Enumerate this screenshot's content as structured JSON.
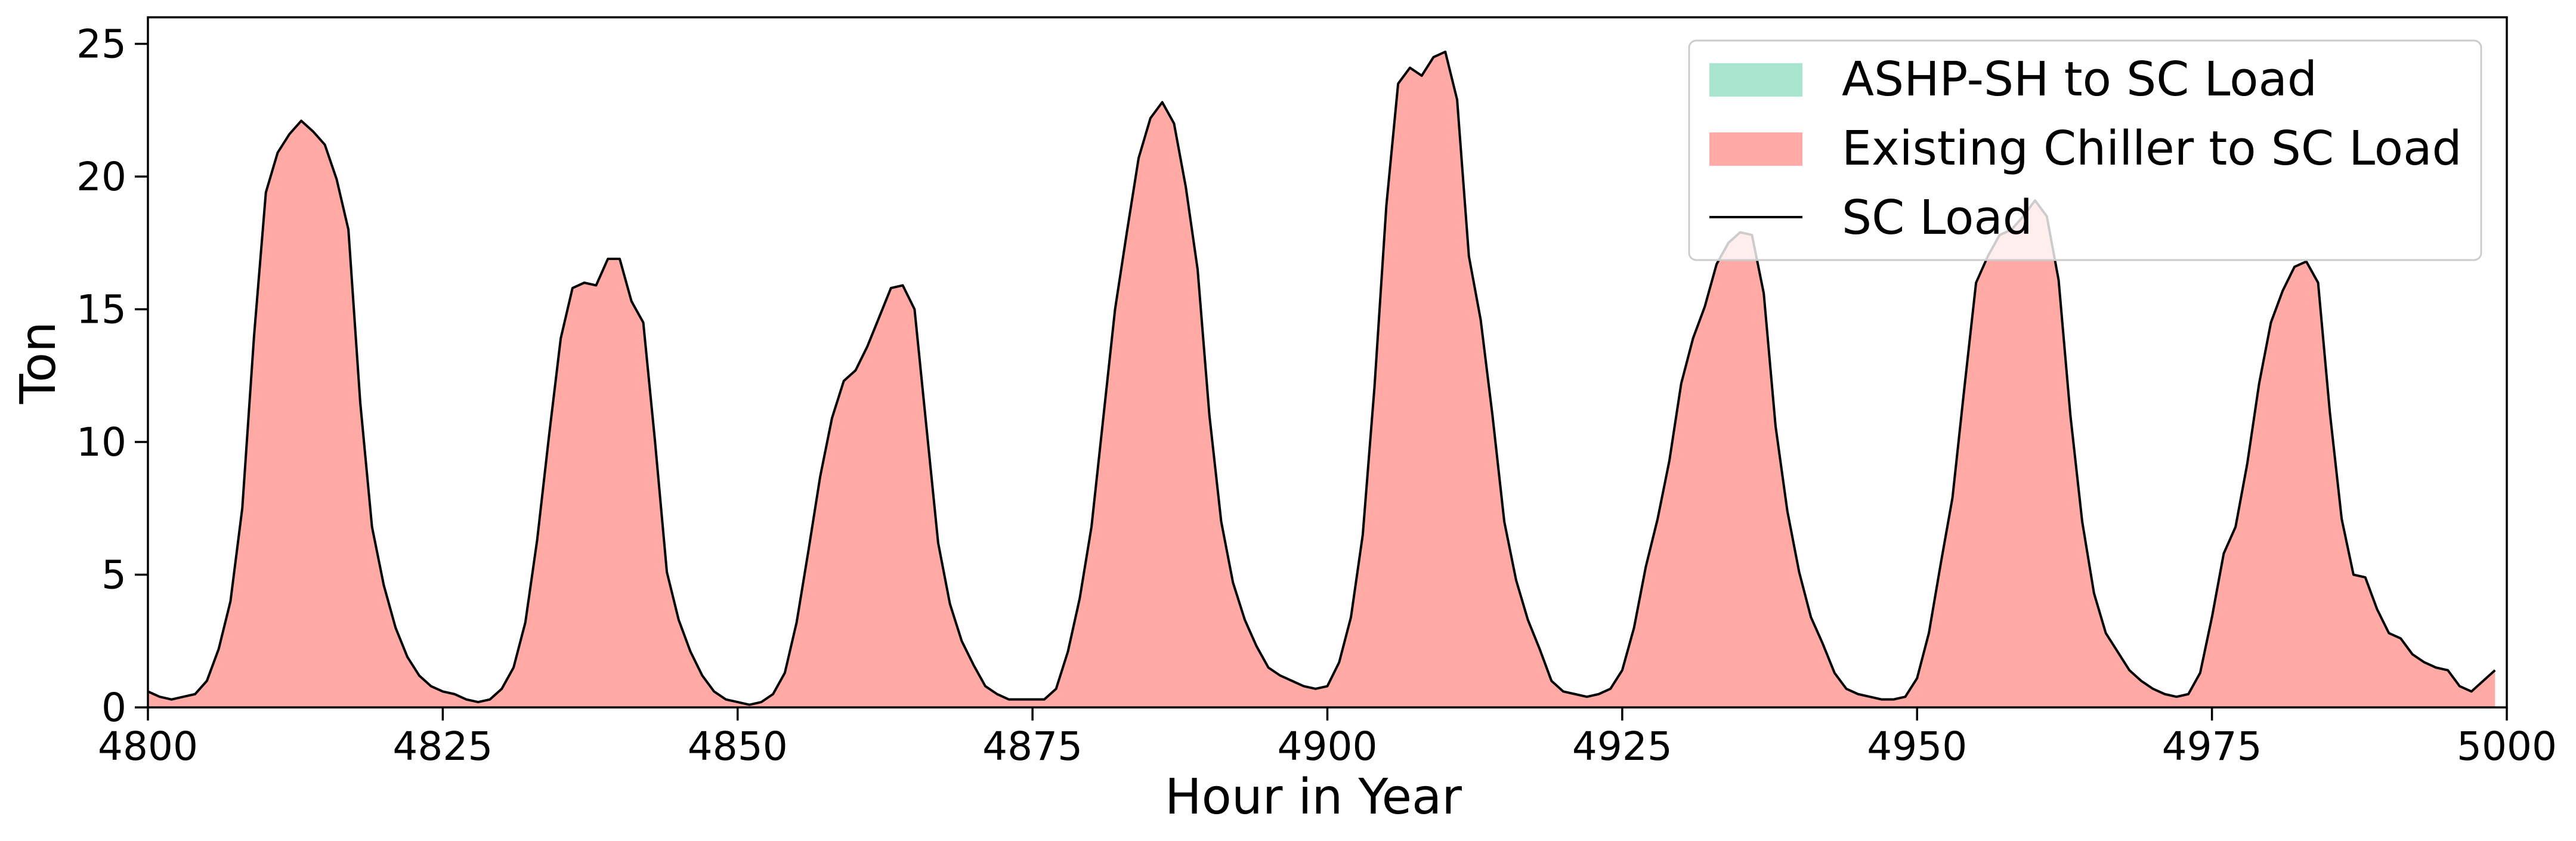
{
  "chart_data": {
    "type": "area",
    "title": "",
    "xlabel": "Hour in Year",
    "ylabel": "Ton",
    "xlim": [
      4800,
      5000
    ],
    "ylim": [
      0,
      26
    ],
    "xticks": [
      4800,
      4825,
      4850,
      4875,
      4900,
      4925,
      4950,
      4975,
      5000
    ],
    "yticks": [
      0,
      5,
      10,
      15,
      20,
      25
    ],
    "grid": false,
    "legend_position": "top-right",
    "colors": {
      "ashp": "#a8e6cf",
      "chiller": "#ffaaa5",
      "load": "#000000"
    },
    "series": [
      {
        "name": "ASHP-SH to SC Load",
        "kind": "stacked-area",
        "color": "#a8e6cf"
      },
      {
        "name": "Existing Chiller to SC Load",
        "kind": "stacked-area",
        "color": "#ffaaa5"
      },
      {
        "name": "SC Load",
        "kind": "line",
        "color": "#000000"
      }
    ],
    "x": [
      4800,
      4801,
      4802,
      4803,
      4804,
      4805,
      4806,
      4807,
      4808,
      4809,
      4810,
      4811,
      4812,
      4813,
      4814,
      4815,
      4816,
      4817,
      4818,
      4819,
      4820,
      4821,
      4822,
      4823,
      4824,
      4825,
      4826,
      4827,
      4828,
      4829,
      4830,
      4831,
      4832,
      4833,
      4834,
      4835,
      4836,
      4837,
      4838,
      4839,
      4840,
      4841,
      4842,
      4843,
      4844,
      4845,
      4846,
      4847,
      4848,
      4849,
      4850,
      4851,
      4852,
      4853,
      4854,
      4855,
      4856,
      4857,
      4858,
      4859,
      4860,
      4861,
      4862,
      4863,
      4864,
      4865,
      4866,
      4867,
      4868,
      4869,
      4870,
      4871,
      4872,
      4873,
      4874,
      4875,
      4876,
      4877,
      4878,
      4879,
      4880,
      4881,
      4882,
      4883,
      4884,
      4885,
      4886,
      4887,
      4888,
      4889,
      4890,
      4891,
      4892,
      4893,
      4894,
      4895,
      4896,
      4897,
      4898,
      4899,
      4900,
      4901,
      4902,
      4903,
      4904,
      4905,
      4906,
      4907,
      4908,
      4909,
      4910,
      4911,
      4912,
      4913,
      4914,
      4915,
      4916,
      4917,
      4918,
      4919,
      4920,
      4921,
      4922,
      4923,
      4924,
      4925,
      4926,
      4927,
      4928,
      4929,
      4930,
      4931,
      4932,
      4933,
      4934,
      4935,
      4936,
      4937,
      4938,
      4939,
      4940,
      4941,
      4942,
      4943,
      4944,
      4945,
      4946,
      4947,
      4948,
      4949,
      4950,
      4951,
      4952,
      4953,
      4954,
      4955,
      4956,
      4957,
      4958,
      4959,
      4960,
      4961,
      4962,
      4963,
      4964,
      4965,
      4966,
      4967,
      4968,
      4969,
      4970,
      4971,
      4972,
      4973,
      4974,
      4975,
      4976,
      4977,
      4978,
      4979,
      4980,
      4981,
      4982,
      4983,
      4984,
      4985,
      4986,
      4987,
      4988,
      4989,
      4990,
      4991,
      4992,
      4993,
      4994,
      4995,
      4996,
      4997,
      4998,
      4999
    ],
    "sc_load": [
      0.6,
      0.4,
      0.3,
      0.4,
      0.5,
      1.0,
      2.2,
      4.0,
      7.5,
      14.0,
      19.4,
      20.9,
      21.6,
      22.1,
      21.7,
      21.2,
      19.9,
      18.0,
      11.5,
      6.8,
      4.6,
      3.0,
      1.9,
      1.2,
      0.8,
      0.6,
      0.5,
      0.3,
      0.2,
      0.3,
      0.7,
      1.5,
      3.2,
      6.3,
      10.2,
      13.9,
      15.8,
      16.0,
      15.9,
      16.9,
      16.9,
      15.3,
      14.5,
      10.0,
      5.1,
      3.3,
      2.1,
      1.2,
      0.6,
      0.3,
      0.2,
      0.1,
      0.2,
      0.5,
      1.3,
      3.2,
      5.9,
      8.7,
      10.9,
      12.3,
      12.7,
      13.6,
      14.7,
      15.8,
      15.9,
      15.0,
      10.6,
      6.2,
      3.9,
      2.5,
      1.6,
      0.8,
      0.5,
      0.3,
      0.3,
      0.3,
      0.3,
      0.7,
      2.1,
      4.1,
      6.8,
      10.9,
      15.0,
      17.9,
      20.7,
      22.2,
      22.8,
      22.0,
      19.6,
      16.5,
      11.0,
      7.0,
      4.7,
      3.3,
      2.3,
      1.5,
      1.2,
      1.0,
      0.8,
      0.7,
      0.8,
      1.7,
      3.4,
      6.5,
      12.1,
      18.9,
      23.5,
      24.1,
      23.8,
      24.5,
      24.7,
      22.9,
      17.0,
      14.6,
      11.0,
      7.0,
      4.8,
      3.3,
      2.2,
      1.0,
      0.6,
      0.5,
      0.4,
      0.5,
      0.7,
      1.4,
      3.0,
      5.3,
      7.1,
      9.3,
      12.2,
      13.9,
      15.1,
      16.7,
      17.5,
      17.9,
      17.8,
      15.6,
      10.6,
      7.4,
      5.1,
      3.4,
      2.4,
      1.3,
      0.7,
      0.5,
      0.4,
      0.3,
      0.3,
      0.4,
      1.1,
      2.8,
      5.4,
      7.9,
      12.0,
      16.0,
      17.0,
      17.8,
      18.0,
      18.5,
      19.1,
      18.5,
      16.1,
      11.0,
      7.0,
      4.3,
      2.8,
      2.1,
      1.4,
      1.0,
      0.7,
      0.5,
      0.4,
      0.5,
      1.3,
      3.4,
      5.8,
      6.8,
      9.2,
      12.2,
      14.5,
      15.7,
      16.6,
      16.8,
      16.0,
      11.1,
      7.1,
      5.0,
      4.9,
      3.7,
      2.8,
      2.6,
      2.0,
      1.7,
      1.5,
      1.4,
      0.8,
      0.6,
      1.0,
      1.4,
      2.1
    ]
  }
}
